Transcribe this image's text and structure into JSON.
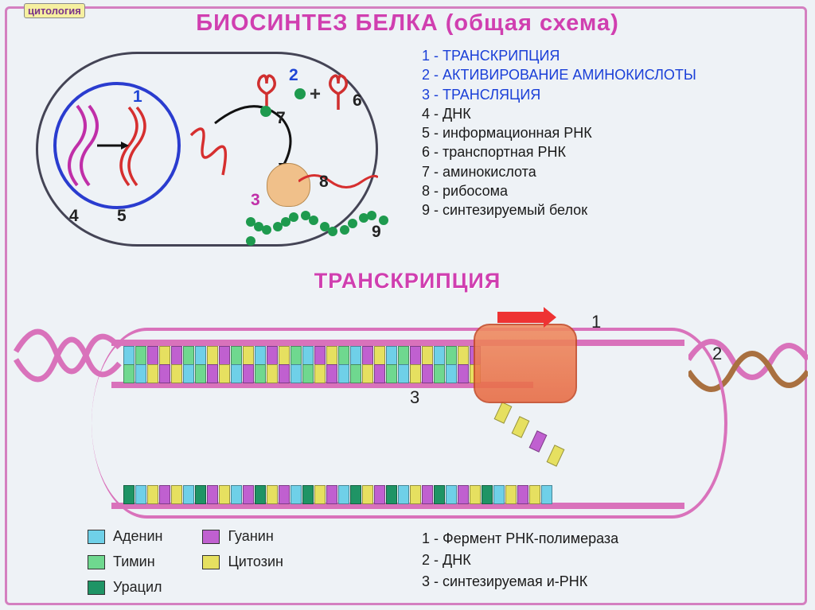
{
  "tag": "цитология",
  "titles": {
    "main": "БИОСИНТЕЗ БЕЛКА (общая схема)",
    "transcription": "ТРАНСКРИПЦИЯ"
  },
  "legend_top": {
    "items": [
      {
        "num": "1",
        "text": "ТРАНСКРИПЦИЯ",
        "color": "blue"
      },
      {
        "num": "2",
        "text": "АКТИВИРОВАНИЕ АМИНОКИСЛОТЫ",
        "color": "blue"
      },
      {
        "num": "3",
        "text": "ТРАНСЛЯЦИЯ",
        "color": "blue"
      },
      {
        "num": "4",
        "text": "ДНК",
        "color": "black"
      },
      {
        "num": "5",
        "text": "информационная РНК",
        "color": "black"
      },
      {
        "num": "6",
        "text": "транспортная РНК",
        "color": "black"
      },
      {
        "num": "7",
        "text": "аминокислота",
        "color": "black"
      },
      {
        "num": "8",
        "text": "рибосома",
        "color": "black"
      },
      {
        "num": "9",
        "text": "синтезируемый белок",
        "color": "black"
      }
    ]
  },
  "overview_labels": {
    "n1": "1",
    "n2": "2",
    "n3": "3",
    "n4": "4",
    "n5": "5",
    "n6": "6",
    "n7": "7",
    "n8": "8",
    "n9": "9",
    "plus": "+"
  },
  "transcription_labels": {
    "n1": "1",
    "n2": "2",
    "n3": "3"
  },
  "bases_legend": {
    "A": {
      "label": "Аденин",
      "color": "#6fd0e8"
    },
    "T": {
      "label": "Тимин",
      "color": "#6fd88f"
    },
    "U": {
      "label": "Урацил",
      "color": "#1f9465"
    },
    "G": {
      "label": "Гуанин",
      "color": "#c060d0"
    },
    "C": {
      "label": "Цитозин",
      "color": "#e6e060"
    }
  },
  "legend_trans": [
    "1 - Фермент РНК-полимераза",
    "2 - ДНК",
    "3 - синтезируемая и-РНК"
  ],
  "colors": {
    "frame": "#d47fc0",
    "title": "#d03fb0",
    "nucleus": "#2a3ccf",
    "amino": "#1e9a4e",
    "ribosome": "#f0c08a",
    "mrna": "#d62f2f",
    "dna_strand": "#d972bb",
    "polymerase": "#e86a42",
    "arrow": "#e33"
  },
  "base_rows": {
    "top": "ATGCGTACGTCAGCTAGCTAGCATGCATCG",
    "middle": "TACGCATGCAGTCGATCGATCGTACGTAGC",
    "free": "CCGC",
    "mrna": "UACGCAUGCAGUCGAUCGAUCGUACGUAGCUACGCA"
  }
}
